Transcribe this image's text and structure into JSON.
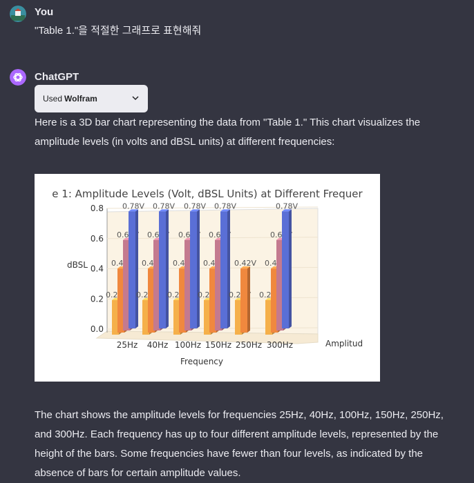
{
  "user": {
    "name": "You",
    "message": "\"Table 1.\"을 적절한 그래프로 표현해줘"
  },
  "assistant": {
    "name": "ChatGPT",
    "tool_chip": {
      "prefix": "Used",
      "tool": "Wolfram"
    },
    "intro": "Here is a 3D bar chart representing the data from \"Table 1.\" This chart visualizes the amplitude levels (in volts and dBSL units) at different frequencies:",
    "outro": "The chart shows the amplitude levels for frequencies 25Hz, 40Hz, 100Hz, 150Hz, 250Hz, and 300Hz. Each frequency has up to four different amplitude levels, represented by the height of the bars. Some frequencies have fewer than four levels, as indicated by the absence of bars for certain amplitude values."
  },
  "colors": {
    "background": "#343541",
    "text": "#ececf1",
    "chip_bg": "#ececf1",
    "gpt_icon_bg": "#ab68ff"
  },
  "chart_data": {
    "type": "bar",
    "style": "3d",
    "title": "e 1: Amplitude Levels (Volt, dBSL Units) at Different Frequer",
    "xlabel": "Frequency",
    "ylabel": "dBSL",
    "zlabel": "Amplitud",
    "ylim": [
      0,
      0.8
    ],
    "yticks": [
      "0.0",
      "0.2",
      "0.4",
      "0.6",
      "0.8"
    ],
    "categories": [
      "25Hz",
      "40Hz",
      "100Hz",
      "150Hz",
      "250Hz",
      "300Hz"
    ],
    "series": [
      {
        "values": [
          0.22,
          0.22,
          0.22,
          0.22,
          0.22,
          0.22
        ],
        "color": "#f5b04a"
      },
      {
        "values": [
          0.42,
          0.42,
          0.42,
          0.42,
          0.42,
          0.42
        ],
        "color": "#f0883e"
      },
      {
        "values": [
          0.6,
          0.6,
          0.6,
          0.6,
          null,
          0.6
        ],
        "color": "#c47a8f"
      },
      {
        "values": [
          0.78,
          0.78,
          0.78,
          0.78,
          null,
          0.78
        ],
        "color": "#5a6fd6"
      }
    ],
    "bar_labels": [
      "0.22V",
      "0.42V",
      "0.60V",
      "0.78V"
    ]
  }
}
